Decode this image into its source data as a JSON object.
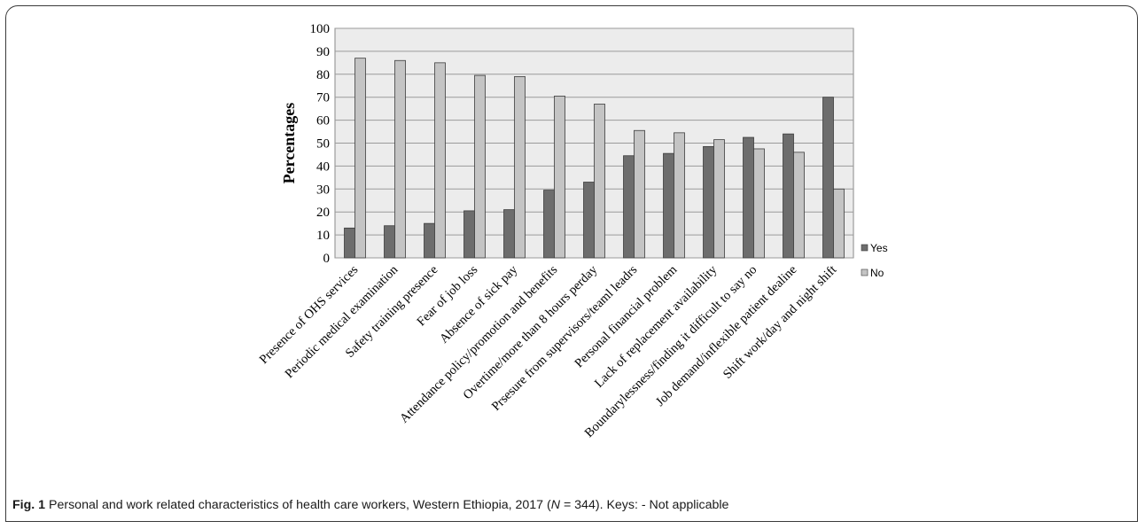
{
  "figure": {
    "label": "Fig. 1",
    "caption_pre": "Personal and work related characteristics of health care workers, Western Ethiopia, 2017 (",
    "caption_n": "N",
    "caption_post": " = 344). Keys: - Not applicable"
  },
  "colors": {
    "yes": "#6d6d6d",
    "no": "#c4c4c4",
    "plot_bg": "#ececec",
    "grid": "#9a9a9a"
  },
  "chart_data": {
    "type": "bar",
    "ylabel": "Percentages",
    "xlabel": "",
    "ylim": [
      0,
      100
    ],
    "yticks": [
      0,
      10,
      20,
      30,
      40,
      50,
      60,
      70,
      80,
      90,
      100
    ],
    "grid": true,
    "legend_position": "right",
    "categories": [
      "Presence of OHS services",
      "Periodic medical examination",
      "Safety training presence",
      "Fear of job loss",
      "Absence of sick pay",
      "Attendance policy/promotion and benefits",
      "Overtime/more than 8 hours perday",
      "Prsesure from supervisors/teaml leadrs",
      "Personal financial problem",
      "Lack of replacement availability",
      "Boundarylessness/finding it difficult to say no",
      "Job demand/inflexible patient dealine",
      "Shift work/day and night shift"
    ],
    "series": [
      {
        "name": "Yes",
        "values": [
          13,
          14,
          15,
          20.5,
          21,
          29.5,
          33,
          44.5,
          45.5,
          48.5,
          52.5,
          54,
          70
        ]
      },
      {
        "name": "No",
        "values": [
          87,
          86,
          85,
          79.5,
          79,
          70.5,
          67,
          55.5,
          54.5,
          51.5,
          47.5,
          46,
          30
        ]
      }
    ]
  }
}
